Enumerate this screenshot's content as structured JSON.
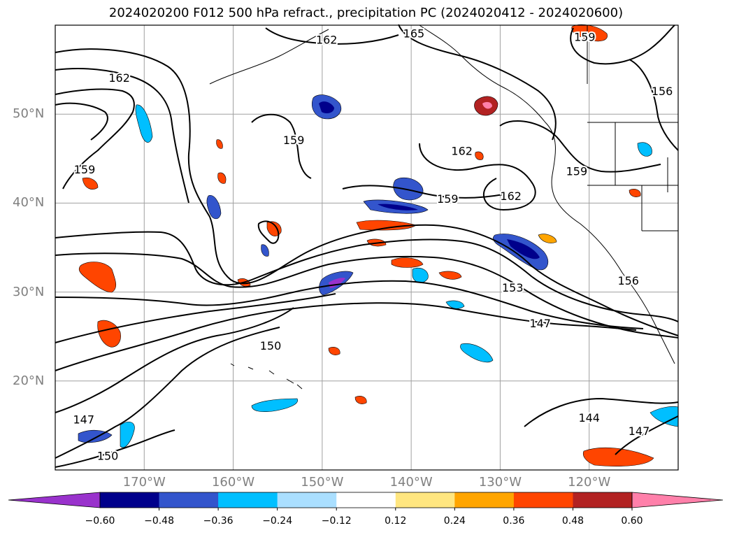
{
  "title": "2024020200 F012 500 hPa refract., precipitation PC (2024020412 - 2024020600)",
  "map": {
    "lat_labels": [
      {
        "text": "50°N",
        "lat": 50
      },
      {
        "text": "40°N",
        "lat": 40
      },
      {
        "text": "30°N",
        "lat": 30
      },
      {
        "text": "20°N",
        "lat": 20
      }
    ],
    "lon_labels": [
      {
        "text": "170°W",
        "lon": -170
      },
      {
        "text": "160°W",
        "lon": -160
      },
      {
        "text": "150°W",
        "lon": -150
      },
      {
        "text": "140°W",
        "lon": -140
      },
      {
        "text": "130°W",
        "lon": -130
      },
      {
        "text": "120°W",
        "lon": -120
      }
    ],
    "extent": {
      "lon_min": -180,
      "lon_max": -110,
      "lat_min": 10,
      "lat_max": 60
    },
    "contour_labels": [
      {
        "text": "165",
        "lon": -139.7,
        "lat": 59.1
      },
      {
        "text": "162",
        "lon": -149.5,
        "lat": 58.4
      },
      {
        "text": "162",
        "lon": -172.8,
        "lat": 54.1
      },
      {
        "text": "159",
        "lon": -120.5,
        "lat": 58.7
      },
      {
        "text": "156",
        "lon": -111.8,
        "lat": 52.6
      },
      {
        "text": "159",
        "lon": -153.2,
        "lat": 47.1
      },
      {
        "text": "159",
        "lon": -176.7,
        "lat": 43.8
      },
      {
        "text": "162",
        "lon": -134.3,
        "lat": 45.9
      },
      {
        "text": "159",
        "lon": -121.4,
        "lat": 43.6
      },
      {
        "text": "159",
        "lon": -135.9,
        "lat": 40.5
      },
      {
        "text": "162",
        "lon": -128.8,
        "lat": 40.8
      },
      {
        "text": "153",
        "lon": -128.6,
        "lat": 30.5
      },
      {
        "text": "156",
        "lon": -115.6,
        "lat": 31.3
      },
      {
        "text": "147",
        "lon": -125.5,
        "lat": 26.5
      },
      {
        "text": "150",
        "lon": -155.8,
        "lat": 24.0
      },
      {
        "text": "147",
        "lon": -176.8,
        "lat": 15.7
      },
      {
        "text": "144",
        "lon": -120.0,
        "lat": 15.9
      },
      {
        "text": "147",
        "lon": -114.4,
        "lat": 14.4
      },
      {
        "text": "150",
        "lon": -174.1,
        "lat": 11.6
      }
    ]
  },
  "colorbar": {
    "tick_labels": [
      "−0.60",
      "−0.48",
      "−0.36",
      "−0.24",
      "−0.12",
      "0.12",
      "0.24",
      "0.36",
      "0.48",
      "0.60"
    ],
    "colors": [
      "#9932cc",
      "#00008b",
      "#3355cc",
      "#00bfff",
      "#aadfff",
      "#ffffff",
      "#ffe680",
      "#ffa500",
      "#ff4500",
      "#b22222",
      "#ff80aa"
    ]
  },
  "colors": {
    "grid": "#a0a0a0",
    "contour": "#000000",
    "coast": "#000000"
  }
}
